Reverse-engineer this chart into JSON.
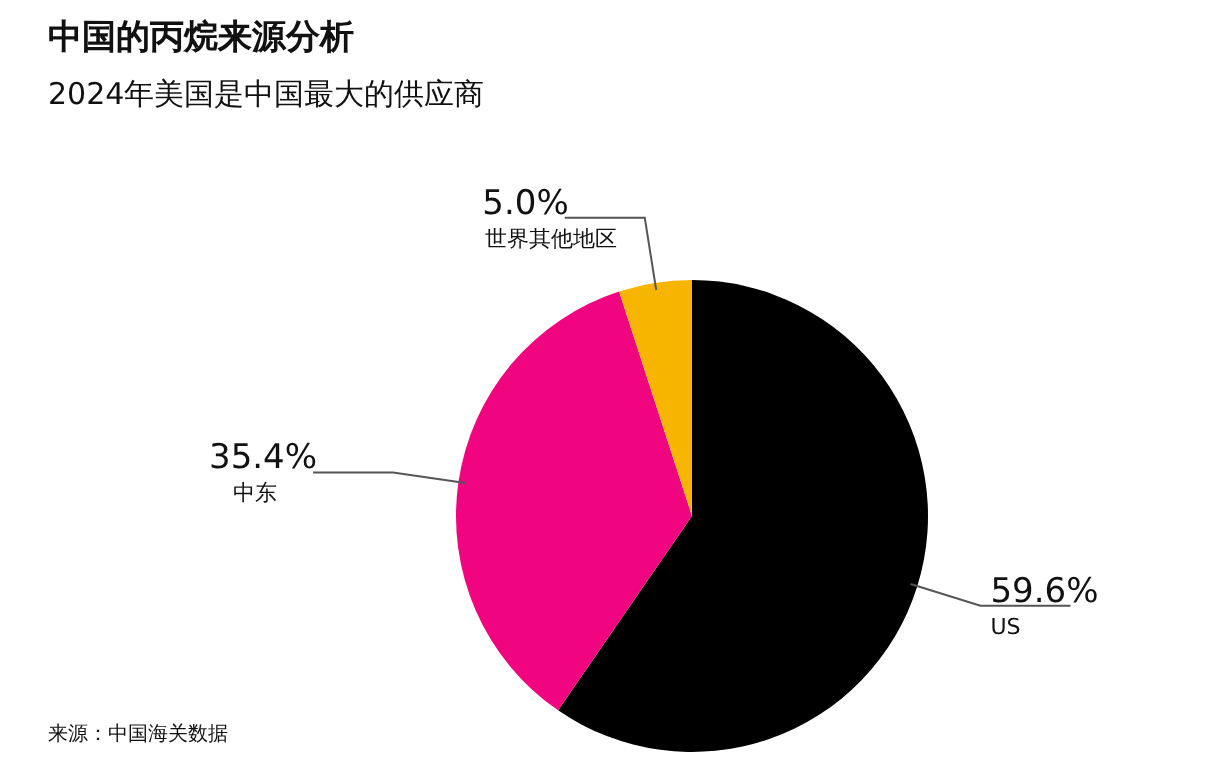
{
  "chart_data": {
    "type": "pie",
    "title": "中国的丙烷来源分析",
    "subtitle": "2024年美国是中国最大的供应商",
    "categories": [
      "US",
      "中东",
      "世界其他地区"
    ],
    "values": [
      59.6,
      35.4,
      5.0
    ],
    "value_labels": [
      "59.6%",
      "35.4%",
      "5.0%"
    ],
    "colors": [
      "#000000",
      "#f0047f",
      "#f7b500"
    ],
    "legend": false,
    "annotations": [
      "来源：中国海关数据"
    ]
  }
}
